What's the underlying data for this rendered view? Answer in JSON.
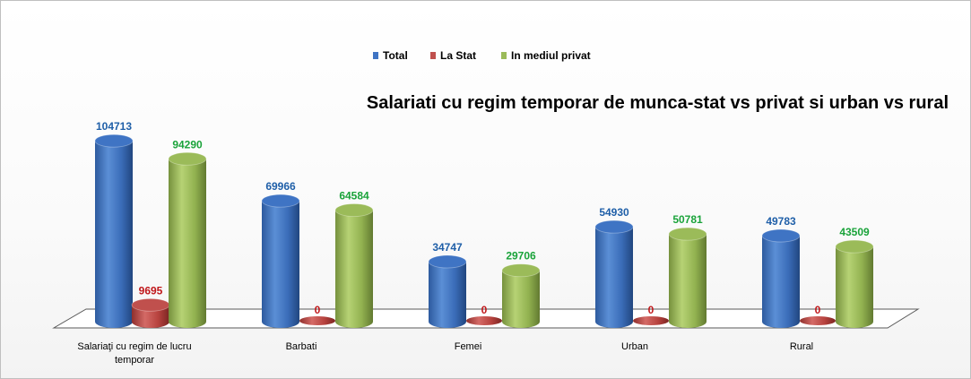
{
  "chart_data": {
    "type": "bar",
    "title": "Salariati cu regim temporar de munca-stat vs privat si urban vs rural",
    "categories": [
      [
        "Salariaţi cu regim de lucru",
        "temporar"
      ],
      [
        "Barbati"
      ],
      [
        "Femei"
      ],
      [
        "Urban"
      ],
      [
        "Rural"
      ]
    ],
    "series": [
      {
        "name": "Total",
        "values": [
          104713,
          69966,
          34747,
          54930,
          49783
        ],
        "color": "#3f74c4",
        "label_color": "#1f5fa8"
      },
      {
        "name": "La Stat",
        "values": [
          9695,
          0,
          0,
          0,
          0
        ],
        "color": "#c0504d",
        "label_color": "#c0181b"
      },
      {
        "name": "In mediul privat",
        "values": [
          94290,
          64584,
          29706,
          50781,
          43509
        ],
        "color": "#9bbb59",
        "label_color": "#1aa33a"
      }
    ],
    "value_labels": [
      [
        "104713",
        "69966",
        "34747",
        "54930",
        "49783"
      ],
      [
        "9695",
        "0",
        "0",
        "0",
        "0"
      ],
      [
        "94290",
        "64584",
        "29706",
        "50781",
        "43509"
      ]
    ],
    "xlabel": "",
    "ylabel": "",
    "ylim": [
      0,
      110000
    ],
    "grid": false,
    "legend_position": "top",
    "style": "3d-cylinder"
  }
}
